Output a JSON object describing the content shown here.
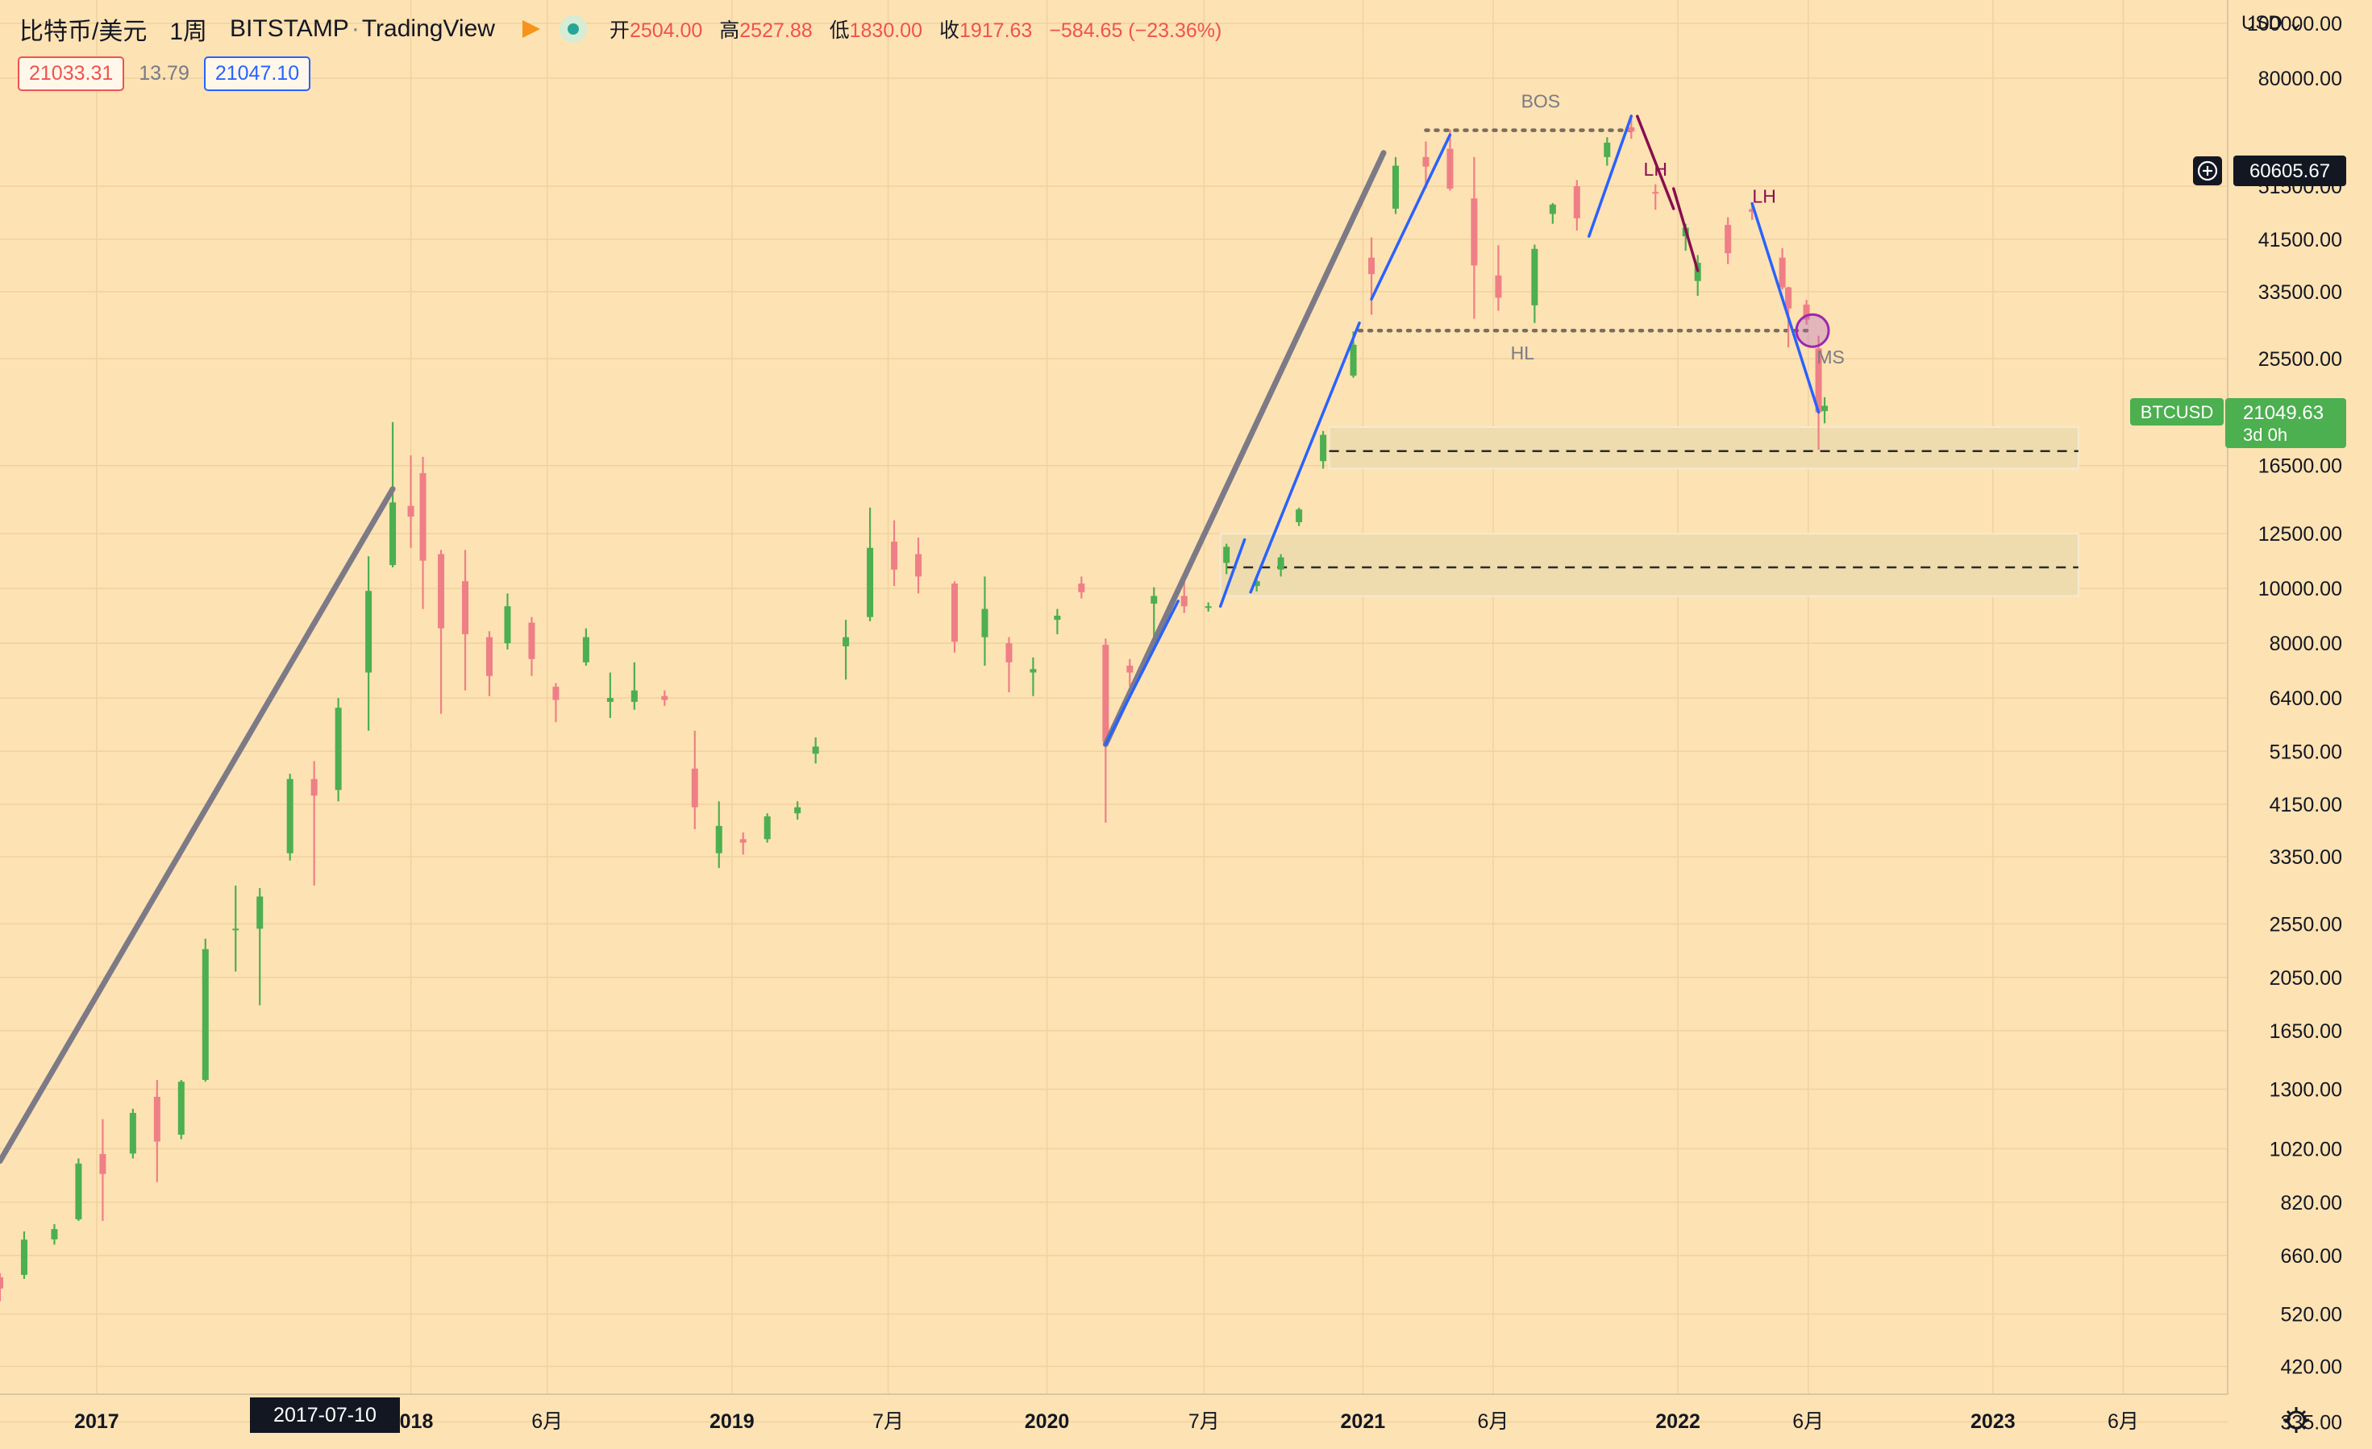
{
  "header": {
    "symbol": "比特币/美元",
    "interval": "1周",
    "exchange": "BITSTAMP",
    "source": "TradingView",
    "open_label": "开",
    "open": "2504.00",
    "high_label": "高",
    "high": "2527.88",
    "low_label": "低",
    "low": "1830.00",
    "close_label": "收",
    "close": "1917.63",
    "change": "−584.65 (−23.36%)"
  },
  "quotes": {
    "bid": "21033.31",
    "spread": "13.79",
    "ask": "21047.10"
  },
  "currency": "USD",
  "price_scale": {
    "ticks": [
      "100000.00",
      "80000.00",
      "51500.00",
      "41500.00",
      "33500.00",
      "25500.00",
      "16500.00",
      "12500.00",
      "10000.00",
      "8000.00",
      "6400.00",
      "5150.00",
      "4150.00",
      "3350.00",
      "2550.00",
      "2050.00",
      "1650.00",
      "1300.00",
      "1020.00",
      "820.00",
      "660.00",
      "520.00",
      "420.00",
      "335.00"
    ],
    "crosshair_price": "60605.67",
    "last_symbol": "BTCUSD",
    "last_price": "21049.63",
    "countdown": "3d 0h"
  },
  "time_scale": {
    "labels": [
      "2017",
      "2018",
      "6月",
      "2019",
      "7月",
      "2020",
      "7月",
      "2021",
      "6月",
      "2022",
      "6月",
      "2023",
      "6月"
    ],
    "crosshair_date": "2017-07-10"
  },
  "annotations": {
    "bos": "BOS",
    "lh1": "LH",
    "lh2": "LH",
    "hl": "HL",
    "ms": "MS"
  },
  "colors": {
    "background": "#fde2b3",
    "up": "#4caf50",
    "down": "#ef7f86",
    "trend_blue": "#2962ff",
    "trend_gray": "#7d7a87",
    "trend_maroon": "#880e4f",
    "zone": "#efdcae"
  },
  "chart_data": {
    "type": "candlestick",
    "symbol": "BTCUSD",
    "scale": "log",
    "ylim": [
      300,
      110000
    ],
    "xlim": [
      "2016-09-05",
      "2023-09-30"
    ],
    "series": [
      {
        "values": [
          [
            "2016-09-05",
            604,
            614,
            548,
            577
          ],
          [
            "2016-10-03",
            610,
            728,
            600,
            704
          ],
          [
            "2016-11-07",
            705,
            750,
            690,
            735
          ],
          [
            "2016-12-05",
            765,
            980,
            760,
            960
          ],
          [
            "2017-01-02",
            998,
            1150,
            760,
            920
          ],
          [
            "2017-02-06",
            1000,
            1200,
            980,
            1180
          ],
          [
            "2017-03-06",
            1260,
            1350,
            890,
            1050
          ],
          [
            "2017-04-03",
            1080,
            1350,
            1060,
            1340
          ],
          [
            "2017-05-01",
            1350,
            2400,
            1340,
            2300
          ],
          [
            "2017-06-05",
            2500,
            2980,
            2100,
            2500
          ],
          [
            "2017-07-03",
            2500,
            2950,
            1830,
            2850
          ],
          [
            "2017-08-07",
            3400,
            4700,
            3300,
            4600
          ],
          [
            "2017-09-04",
            4600,
            4950,
            2980,
            4300
          ],
          [
            "2017-10-02",
            4400,
            6400,
            4200,
            6150
          ],
          [
            "2017-11-06",
            7100,
            11400,
            5600,
            9900
          ],
          [
            "2017-12-04",
            11000,
            19700,
            10900,
            14200
          ],
          [
            "2017-12-25",
            14000,
            17200,
            11800,
            13400
          ],
          [
            "2018-01-08",
            16000,
            17100,
            9200,
            11200
          ],
          [
            "2018-01-29",
            11500,
            11700,
            6000,
            8500
          ],
          [
            "2018-02-26",
            10300,
            11700,
            6600,
            8300
          ],
          [
            "2018-03-26",
            8200,
            8400,
            6450,
            7000
          ],
          [
            "2018-04-16",
            8000,
            9800,
            7800,
            9300
          ],
          [
            "2018-05-14",
            8700,
            8900,
            7000,
            7500
          ],
          [
            "2018-06-11",
            6700,
            6800,
            5800,
            6350
          ],
          [
            "2018-07-16",
            7400,
            8500,
            7300,
            8200
          ],
          [
            "2018-08-13",
            6300,
            7100,
            5900,
            6400
          ],
          [
            "2018-09-10",
            6300,
            7400,
            6100,
            6600
          ],
          [
            "2018-10-15",
            6450,
            6600,
            6200,
            6350
          ],
          [
            "2018-11-19",
            4800,
            5600,
            3750,
            4100
          ],
          [
            "2018-12-17",
            3400,
            4200,
            3200,
            3800
          ],
          [
            "2019-01-14",
            3600,
            3700,
            3380,
            3550
          ],
          [
            "2019-02-11",
            3600,
            4000,
            3550,
            3950
          ],
          [
            "2019-03-18",
            4000,
            4200,
            3900,
            4100
          ],
          [
            "2019-04-08",
            5100,
            5450,
            4900,
            5250
          ],
          [
            "2019-05-13",
            7900,
            8800,
            6900,
            8200
          ],
          [
            "2019-06-10",
            8900,
            13900,
            8750,
            11800
          ],
          [
            "2019-07-08",
            12100,
            13200,
            10100,
            10800
          ],
          [
            "2019-08-05",
            11500,
            12300,
            9800,
            10500
          ],
          [
            "2019-09-16",
            10200,
            10300,
            7700,
            8050
          ],
          [
            "2019-10-21",
            8200,
            10500,
            7300,
            9200
          ],
          [
            "2019-11-18",
            8000,
            8200,
            6550,
            7400
          ],
          [
            "2019-12-16",
            7100,
            7550,
            6450,
            7200
          ],
          [
            "2020-01-13",
            8800,
            9200,
            8300,
            8950
          ],
          [
            "2020-02-10",
            10200,
            10500,
            9600,
            9850
          ],
          [
            "2020-03-09",
            7950,
            8150,
            3850,
            5350
          ],
          [
            "2020-04-06",
            7300,
            7500,
            6700,
            7100
          ],
          [
            "2020-05-04",
            9400,
            10050,
            8100,
            9700
          ],
          [
            "2020-06-08",
            9700,
            10400,
            9050,
            9300
          ],
          [
            "2020-07-06",
            9250,
            9450,
            9100,
            9300
          ],
          [
            "2020-07-27",
            11100,
            12000,
            10600,
            11850
          ],
          [
            "2020-08-31",
            10100,
            10450,
            9880,
            10300
          ],
          [
            "2020-09-28",
            10800,
            11500,
            10500,
            11350
          ],
          [
            "2020-10-19",
            13100,
            13900,
            12900,
            13800
          ],
          [
            "2020-11-16",
            16800,
            19000,
            16300,
            18700
          ],
          [
            "2020-12-21",
            23800,
            28500,
            23600,
            27000
          ],
          [
            "2021-01-11",
            38500,
            41800,
            30500,
            36000
          ],
          [
            "2021-02-08",
            47000,
            58000,
            46000,
            56000
          ],
          [
            "2021-03-15",
            58000,
            61800,
            51000,
            55800
          ],
          [
            "2021-04-12",
            60000,
            64900,
            50600,
            51000
          ],
          [
            "2021-05-10",
            49000,
            58000,
            30000,
            37300
          ],
          [
            "2021-06-07",
            35800,
            40500,
            31000,
            32700
          ],
          [
            "2021-07-19",
            31700,
            40600,
            29500,
            39900
          ],
          [
            "2021-08-09",
            46000,
            48100,
            44200,
            47800
          ],
          [
            "2021-09-06",
            51500,
            52800,
            43000,
            45200
          ],
          [
            "2021-10-11",
            58000,
            62900,
            56000,
            61500
          ],
          [
            "2021-11-08",
            65500,
            69000,
            62500,
            64400
          ],
          [
            "2021-12-06",
            50300,
            51900,
            46800,
            50200
          ],
          [
            "2022-01-10",
            42000,
            44200,
            39600,
            43500
          ],
          [
            "2022-01-24",
            35000,
            38900,
            32950,
            37700
          ],
          [
            "2022-02-28",
            44000,
            45400,
            37500,
            39200
          ],
          [
            "2022-03-28",
            46900,
            48200,
            44900,
            46400
          ],
          [
            "2022-05-02",
            38500,
            40000,
            33800,
            34100
          ],
          [
            "2022-05-09",
            34100,
            34200,
            26700,
            31300
          ],
          [
            "2022-05-30",
            31800,
            32400,
            29300,
            29900
          ],
          [
            "2022-06-13",
            26600,
            28000,
            17600,
            20500
          ],
          [
            "2022-06-20",
            20600,
            21800,
            19600,
            21049
          ]
        ]
      }
    ],
    "lines": [
      {
        "color": "gray",
        "points": [
          [
            "2016-09-05",
            970
          ],
          [
            "2017-12-04",
            15000
          ]
        ]
      },
      {
        "color": "gray",
        "points": [
          [
            "2020-03-09",
            5300
          ],
          [
            "2021-01-25",
            59000
          ]
        ]
      },
      {
        "color": "blue",
        "points": [
          [
            "2020-03-09",
            5300
          ],
          [
            "2020-06-01",
            9500
          ]
        ]
      },
      {
        "color": "blue",
        "points": [
          [
            "2020-07-20",
            9300
          ],
          [
            "2020-08-17",
            12200
          ]
        ]
      },
      {
        "color": "blue",
        "points": [
          [
            "2020-08-24",
            9850
          ],
          [
            "2020-12-28",
            29500
          ]
        ]
      },
      {
        "color": "blue",
        "points": [
          [
            "2021-01-11",
            32500
          ],
          [
            "2021-04-12",
            63500
          ]
        ]
      },
      {
        "color": "blue",
        "points": [
          [
            "2021-09-20",
            42000
          ],
          [
            "2021-11-08",
            68500
          ]
        ]
      },
      {
        "color": "blue",
        "points": [
          [
            "2022-03-28",
            48000
          ],
          [
            "2022-06-13",
            20500
          ]
        ]
      },
      {
        "color": "maroon",
        "points": [
          [
            "2021-11-15",
            68500
          ],
          [
            "2021-12-27",
            47000
          ]
        ]
      },
      {
        "color": "maroon",
        "points": [
          [
            "2021-12-27",
            51000
          ],
          [
            "2022-01-24",
            36500
          ]
        ]
      }
    ],
    "levels": [
      {
        "label": "BOS",
        "price": 64700,
        "from": "2021-03-15",
        "to": "2021-11-15",
        "style": "dotted"
      },
      {
        "label": "HL",
        "price": 28600,
        "from": "2020-12-28",
        "to": "2022-06-06",
        "style": "dotted"
      },
      {
        "price": 17500,
        "from": "2020-11-23",
        "to": "2023-04-10",
        "style": "dashed"
      },
      {
        "price": 10900,
        "from": "2020-07-27",
        "to": "2023-04-10",
        "style": "dashed"
      }
    ],
    "zones": [
      {
        "from": "2020-11-23",
        "to": "2023-04-10",
        "low": 16300,
        "high": 19300
      },
      {
        "from": "2020-07-20",
        "to": "2023-04-10",
        "low": 9700,
        "high": 12500
      }
    ],
    "marker": {
      "label": "MS",
      "date": "2022-06-06",
      "price": 28600
    }
  }
}
